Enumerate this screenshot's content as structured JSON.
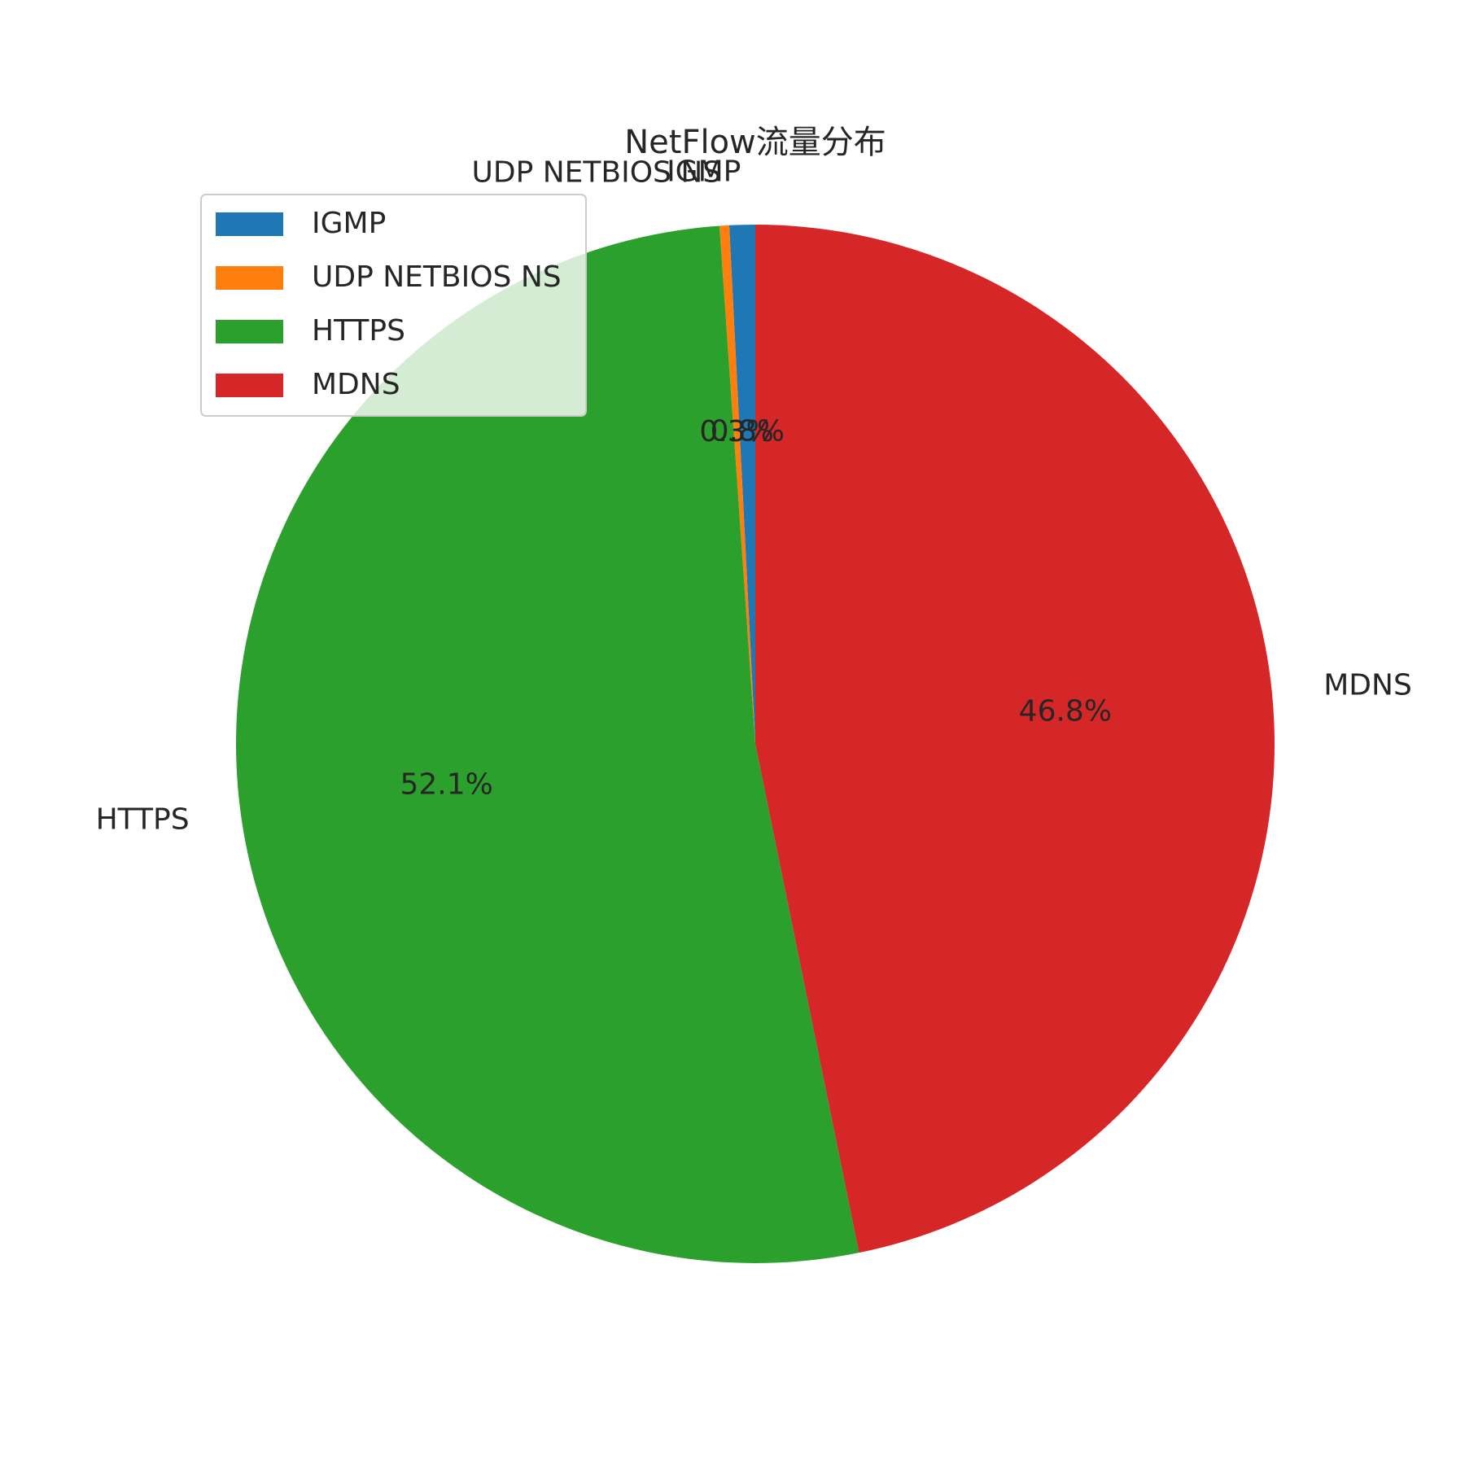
{
  "chart_data": {
    "type": "pie",
    "title": "NetFlow流量分布",
    "labels": [
      "IGMP",
      "UDP NETBIOS NS",
      "HTTPS",
      "MDNS"
    ],
    "values": [
      0.8,
      0.3,
      52.1,
      46.8
    ],
    "value_labels": [
      "0.8%",
      "0.3%",
      "52.1%",
      "46.8%"
    ],
    "colors": [
      "#1f77b4",
      "#ff7f0e",
      "#2ca02c",
      "#d62728"
    ],
    "start_angle_deg": 90,
    "direction": "counterclockwise",
    "legend": {
      "position": "upper-left",
      "entries": [
        "IGMP",
        "UDP NETBIOS NS",
        "HTTPS",
        "MDNS"
      ]
    }
  }
}
